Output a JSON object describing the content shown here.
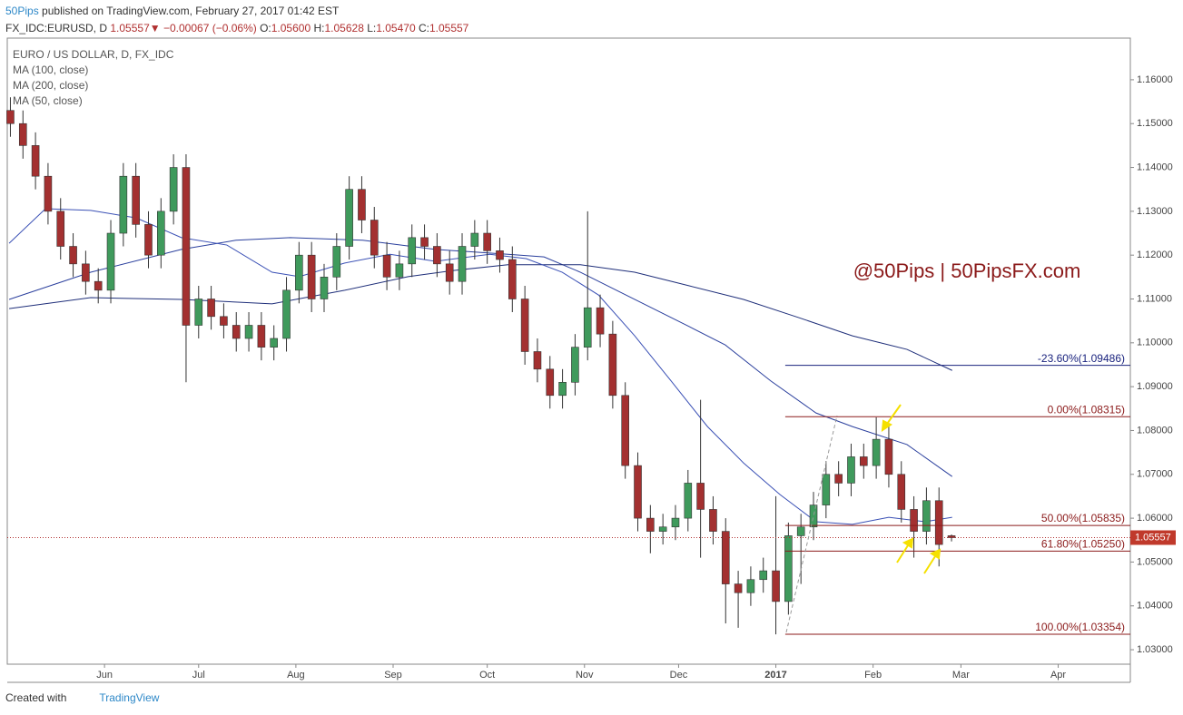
{
  "header": {
    "author": "50Pips",
    "published": "published on TradingView.com, February 27, 2017 01:42 EST",
    "symbol": "FX_IDC:EURUSD, D",
    "change_arrow": "▼",
    "change": "−0.00067 (−0.06%)",
    "o_label": "O:",
    "o": "1.05600",
    "h_label": "H:",
    "h": "1.05628",
    "l_label": "L:",
    "l": "1.05470",
    "c_label": "C:",
    "c": "1.05557"
  },
  "footer": {
    "created": "Created with",
    "brand": "TradingView"
  },
  "chart_data": {
    "type": "candlestick",
    "title": "EURO / US DOLLAR, D, FX_IDC",
    "watermark": "@50Pips | 50PipsFX.com",
    "up_color": "#3f9a5c",
    "down_color": "#a33030",
    "xlim": [
      4,
      362
    ],
    "ylim": [
      1.0267,
      1.1695
    ],
    "xticks": [
      {
        "value": 35,
        "label": "Jun"
      },
      {
        "value": 65,
        "label": "Jul"
      },
      {
        "value": 96,
        "label": "Aug"
      },
      {
        "value": 127,
        "label": "Sep"
      },
      {
        "value": 157,
        "label": "Oct"
      },
      {
        "value": 188,
        "label": "Nov"
      },
      {
        "value": 218,
        "label": "Dec"
      },
      {
        "value": 249,
        "label": "2017"
      },
      {
        "value": 280,
        "label": "Feb"
      },
      {
        "value": 308,
        "label": "Mar"
      },
      {
        "value": 339,
        "label": "Apr"
      }
    ],
    "yticks": [
      {
        "value": 1.03,
        "label": "1.03000"
      },
      {
        "value": 1.04,
        "label": "1.04000"
      },
      {
        "value": 1.05,
        "label": "1.05000"
      },
      {
        "value": 1.06,
        "label": "1.06000"
      },
      {
        "value": 1.07,
        "label": "1.07000"
      },
      {
        "value": 1.08,
        "label": "1.08000"
      },
      {
        "value": 1.09,
        "label": "1.09000"
      },
      {
        "value": 1.1,
        "label": "1.10000"
      },
      {
        "value": 1.11,
        "label": "1.11000"
      },
      {
        "value": 1.12,
        "label": "1.12000"
      },
      {
        "value": 1.13,
        "label": "1.13000"
      },
      {
        "value": 1.14,
        "label": "1.14000"
      },
      {
        "value": 1.15,
        "label": "1.15000"
      },
      {
        "value": 1.16,
        "label": "1.16000"
      }
    ],
    "last_price": 1.05557,
    "x": [
      5,
      9,
      13,
      17,
      21,
      25,
      29,
      33,
      37,
      41,
      45,
      49,
      53,
      57,
      61,
      65,
      69,
      73,
      77,
      81,
      85,
      89,
      93,
      97,
      101,
      105,
      109,
      113,
      117,
      121,
      125,
      129,
      133,
      137,
      141,
      145,
      149,
      153,
      157,
      161,
      165,
      169,
      173,
      177,
      181,
      185,
      189,
      193,
      197,
      201,
      205,
      209,
      213,
      217,
      221,
      225,
      229,
      233,
      237,
      241,
      245,
      249,
      253,
      257,
      261,
      265,
      269,
      273,
      277,
      281,
      285,
      289,
      293,
      297,
      301,
      305
    ],
    "open": [
      1.153,
      1.15,
      1.145,
      1.138,
      1.13,
      1.122,
      1.118,
      1.114,
      1.112,
      1.125,
      1.138,
      1.127,
      1.12,
      1.13,
      1.14,
      1.104,
      1.11,
      1.106,
      1.104,
      1.101,
      1.104,
      1.099,
      1.101,
      1.112,
      1.12,
      1.11,
      1.115,
      1.122,
      1.135,
      1.128,
      1.12,
      1.115,
      1.118,
      1.124,
      1.122,
      1.118,
      1.114,
      1.122,
      1.125,
      1.121,
      1.119,
      1.11,
      1.098,
      1.094,
      1.088,
      1.091,
      1.099,
      1.108,
      1.102,
      1.088,
      1.072,
      1.06,
      1.057,
      1.058,
      1.06,
      1.068,
      1.062,
      1.057,
      1.045,
      1.043,
      1.046,
      1.048,
      1.041,
      1.056,
      1.058,
      1.063,
      1.07,
      1.068,
      1.074,
      1.072,
      1.078,
      1.07,
      1.062,
      1.057,
      1.064,
      1.056
    ],
    "high": [
      1.156,
      1.153,
      1.148,
      1.141,
      1.133,
      1.125,
      1.121,
      1.117,
      1.128,
      1.141,
      1.141,
      1.13,
      1.133,
      1.143,
      1.143,
      1.113,
      1.113,
      1.109,
      1.107,
      1.107,
      1.107,
      1.104,
      1.115,
      1.123,
      1.123,
      1.118,
      1.125,
      1.138,
      1.138,
      1.131,
      1.123,
      1.121,
      1.127,
      1.127,
      1.125,
      1.121,
      1.125,
      1.128,
      1.128,
      1.124,
      1.122,
      1.113,
      1.101,
      1.097,
      1.094,
      1.102,
      1.13,
      1.111,
      1.105,
      1.091,
      1.075,
      1.063,
      1.061,
      1.063,
      1.071,
      1.087,
      1.065,
      1.06,
      1.048,
      1.049,
      1.051,
      1.065,
      1.059,
      1.061,
      1.066,
      1.073,
      1.073,
      1.077,
      1.077,
      1.083,
      1.081,
      1.073,
      1.065,
      1.067,
      1.067,
      1.05628
    ],
    "low": [
      1.147,
      1.142,
      1.135,
      1.127,
      1.119,
      1.115,
      1.111,
      1.109,
      1.109,
      1.122,
      1.124,
      1.117,
      1.117,
      1.127,
      1.091,
      1.101,
      1.103,
      1.101,
      1.098,
      1.098,
      1.096,
      1.096,
      1.098,
      1.109,
      1.107,
      1.107,
      1.112,
      1.119,
      1.125,
      1.117,
      1.112,
      1.112,
      1.115,
      1.119,
      1.115,
      1.111,
      1.111,
      1.119,
      1.118,
      1.116,
      1.107,
      1.095,
      1.091,
      1.085,
      1.085,
      1.088,
      1.096,
      1.099,
      1.085,
      1.069,
      1.057,
      1.052,
      1.054,
      1.055,
      1.057,
      1.051,
      1.054,
      1.036,
      1.035,
      1.04,
      1.043,
      1.0335,
      1.038,
      1.045,
      1.055,
      1.06,
      1.065,
      1.065,
      1.069,
      1.069,
      1.067,
      1.059,
      1.051,
      1.054,
      1.049,
      1.0547
    ],
    "close": [
      1.15,
      1.145,
      1.138,
      1.13,
      1.122,
      1.118,
      1.114,
      1.112,
      1.125,
      1.138,
      1.127,
      1.12,
      1.13,
      1.14,
      1.104,
      1.11,
      1.106,
      1.104,
      1.101,
      1.104,
      1.099,
      1.101,
      1.112,
      1.12,
      1.11,
      1.115,
      1.122,
      1.135,
      1.128,
      1.12,
      1.115,
      1.118,
      1.124,
      1.122,
      1.118,
      1.114,
      1.122,
      1.125,
      1.121,
      1.119,
      1.11,
      1.098,
      1.094,
      1.088,
      1.091,
      1.099,
      1.108,
      1.102,
      1.088,
      1.072,
      1.06,
      1.057,
      1.058,
      1.06,
      1.068,
      1.062,
      1.057,
      1.045,
      1.043,
      1.046,
      1.048,
      1.041,
      1.056,
      1.058,
      1.063,
      1.07,
      1.068,
      1.074,
      1.072,
      1.078,
      1.07,
      1.062,
      1.057,
      1.064,
      1.054,
      1.05557
    ],
    "series": [
      {
        "name": "MA (100, close)",
        "color": "#2a3f9d",
        "x": [
          4.6,
          30.6,
          59.5,
          76.9,
          94.2,
          117.3,
          140.5,
          163.6,
          175.1,
          186.7,
          204.0,
          221.4,
          232.9,
          247.4,
          261.8,
          273.4,
          290.8,
          305.2
        ],
        "values": [
          1.1099,
          1.1161,
          1.1213,
          1.1234,
          1.124,
          1.1234,
          1.1213,
          1.1202,
          1.1196,
          1.1161,
          1.1099,
          1.1037,
          1.0995,
          1.0913,
          1.084,
          1.0809,
          1.0768,
          1.0695
        ]
      },
      {
        "name": "MA (200, close)",
        "color": "#1f2f7a",
        "x": [
          4.6,
          30.6,
          59.5,
          88.4,
          111.6,
          131.8,
          146.2,
          163.6,
          186.7,
          204.0,
          221.4,
          238.7,
          256.1,
          273.4,
          290.8,
          305.2
        ],
        "values": [
          1.1078,
          1.1103,
          1.1099,
          1.1089,
          1.112,
          1.1151,
          1.1165,
          1.1178,
          1.1178,
          1.1161,
          1.113,
          1.1099,
          1.1058,
          1.1016,
          1.0985,
          1.0937
        ]
      },
      {
        "name": "MA (50, close)",
        "color": "#3a50b5",
        "x": [
          4.6,
          16.2,
          30.6,
          45.1,
          59.5,
          74.0,
          88.4,
          97.1,
          111.6,
          126.0,
          140.5,
          157.8,
          169.4,
          180.9,
          192.5,
          204.0,
          215.6,
          227.2,
          238.7,
          250.3,
          261.8,
          273.4,
          285.0,
          296.5,
          305.2
        ],
        "values": [
          1.1227,
          1.1306,
          1.1302,
          1.1285,
          1.124,
          1.1223,
          1.1161,
          1.1151,
          1.1182,
          1.1202,
          1.1186,
          1.1202,
          1.1192,
          1.1161,
          1.1109,
          1.1016,
          1.0913,
          1.0809,
          1.0726,
          1.0654,
          1.0592,
          1.0586,
          1.0602,
          1.0592,
          1.0602
        ]
      }
    ],
    "fib_x": [
      252,
      362
    ],
    "fib_levels": [
      {
        "label": "-23.60%(1.09486)",
        "value": 1.09486,
        "color": "#1a237e"
      },
      {
        "label": "0.00%(1.08315)",
        "value": 1.08315,
        "color": "#8b1a1a"
      },
      {
        "label": "50.00%(1.05835)",
        "value": 1.05835,
        "color": "#8b1a1a"
      },
      {
        "label": "61.80%(1.05250)",
        "value": 1.0525,
        "color": "#8b1a1a"
      },
      {
        "label": "100.00%(1.03354)",
        "value": 1.03354,
        "color": "#8b1a1a"
      }
    ]
  }
}
